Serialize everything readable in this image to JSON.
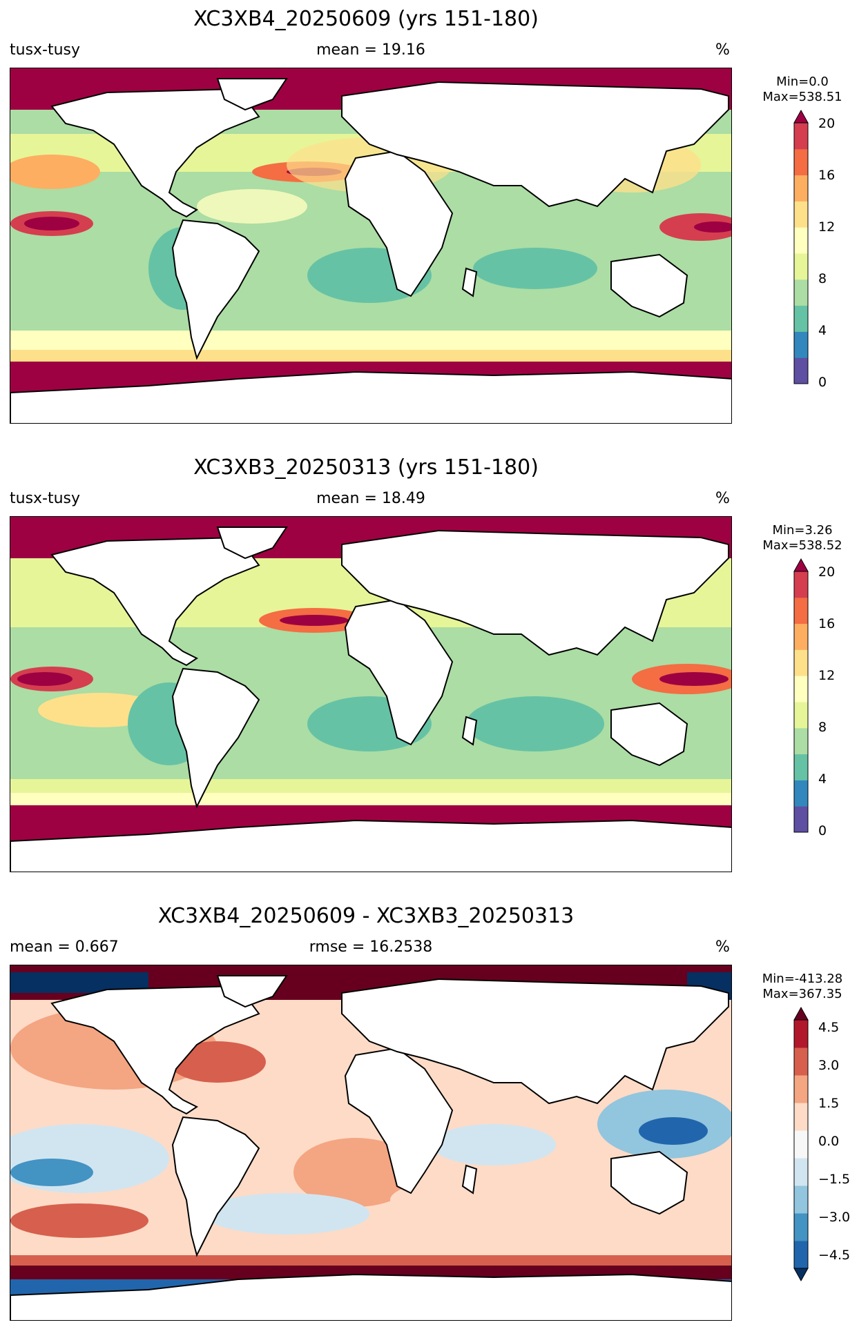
{
  "panels": [
    {
      "title": "XC3XB4_20250609 (yrs 151-180)",
      "left_label": "tusx-tusy",
      "center_label": "mean = 19.16",
      "right_label": "%",
      "cb_min": "Min=0.0",
      "cb_max": "Max=538.51",
      "ticks": [
        "20",
        "16",
        "12",
        "8",
        "4",
        "0"
      ],
      "colors": [
        "#5e4fa2",
        "#3288bd",
        "#66c2a5",
        "#abdda4",
        "#e6f598",
        "#ffffbf",
        "#fee08b",
        "#fdae61",
        "#f46d43",
        "#d53e4f",
        "#9e0142"
      ]
    },
    {
      "title": "XC3XB3_20250313 (yrs 151-180)",
      "left_label": "tusx-tusy",
      "center_label": "mean = 18.49",
      "right_label": "%",
      "cb_min": "Min=3.26",
      "cb_max": "Max=538.52",
      "ticks": [
        "20",
        "16",
        "12",
        "8",
        "4",
        "0"
      ],
      "colors": [
        "#5e4fa2",
        "#3288bd",
        "#66c2a5",
        "#abdda4",
        "#e6f598",
        "#ffffbf",
        "#fee08b",
        "#fdae61",
        "#f46d43",
        "#d53e4f",
        "#9e0142"
      ]
    },
    {
      "title": "XC3XB4_20250609 - XC3XB3_20250313",
      "left_label": "mean = 0.667",
      "center_label": "rmse = 16.2538",
      "right_label": "%",
      "cb_min": "Min=-413.28",
      "cb_max": "Max=367.35",
      "ticks": [
        "4.5",
        "3.0",
        "1.5",
        "0.0",
        "−1.5",
        "−3.0",
        "−4.5"
      ],
      "colors": [
        "#053061",
        "#2166ac",
        "#4393c3",
        "#92c5de",
        "#d1e5f0",
        "#f7f7f7",
        "#fddbc7",
        "#f4a582",
        "#d6604d",
        "#b2182b",
        "#67001f"
      ]
    }
  ]
}
